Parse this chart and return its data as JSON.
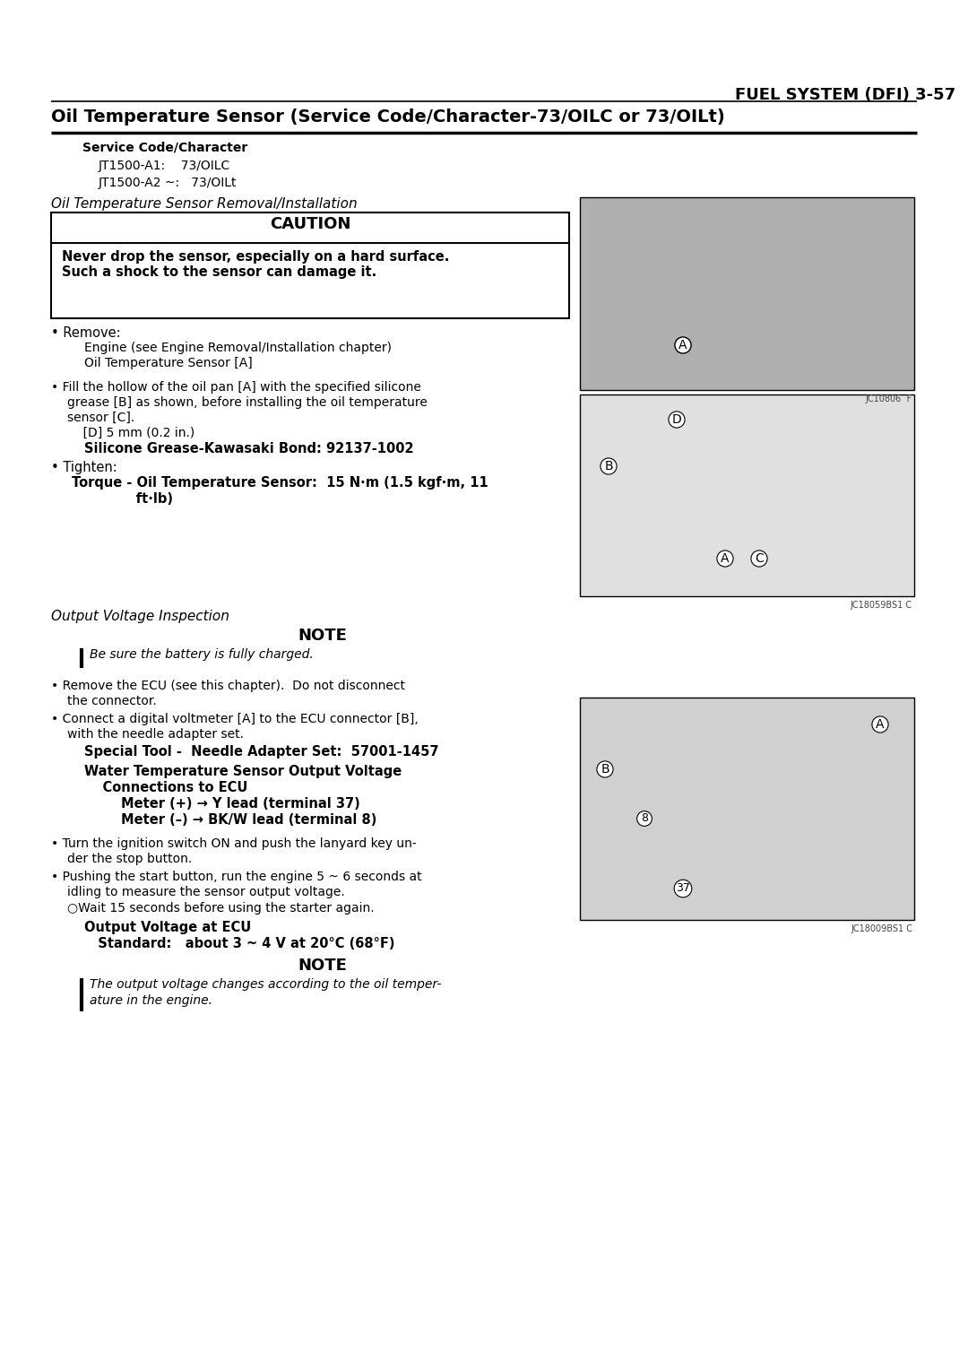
{
  "page_title": "FUEL SYSTEM (DFI) 3-57",
  "section_title": "Oil Temperature Sensor (Service Code/Character-73/OILC or 73/OILt)",
  "service_code_label": "Service Code/Character",
  "service_code_1": "JT1500-A1:    73/OILC",
  "service_code_2": "JT1500-A2 ~:   73/OILt",
  "subsection1_title": "Oil Temperature Sensor Removal/Installation",
  "caution_header": "CAUTION",
  "caution_text": "Never drop the sensor, especially on a hard surface.\nSuch a shock to the sensor can damage it.",
  "remove_label": "• Remove:",
  "remove_text1": "Engine (see Engine Removal/Installation chapter)",
  "remove_text2": "Oil Temperature Sensor [A]",
  "fill_bullet": "• Fill the hollow of the oil pan [A] with the specified silicone",
  "fill_text2": "grease [B] as shown, before installing the oil temperature",
  "fill_text3": "sensor [C].",
  "fill_sub": "    [D] 5 mm (0.2 in.)",
  "silicone_label": "Silicone Grease-Kawasaki Bond: 92137-1002",
  "tighten_bullet": "• Tighten:",
  "torque_line1": "Torque - Oil Temperature Sensor:  15 N·m (1.5 kgf·m, 11",
  "torque_line2": "              ft·lb)",
  "subsection2_title": "Output Voltage Inspection",
  "note_header": "NOTE",
  "note_text": "Be sure the battery is fully charged.",
  "remove_ecu_bullet": "• Remove the ECU (see this chapter).  Do not disconnect",
  "remove_ecu_text2": "the connector.",
  "connect_bullet": "• Connect a digital voltmeter [A] to the ECU connector [B],",
  "connect_text2": "with the needle adapter set.",
  "special_tool_label": "Special Tool -  Needle Adapter Set:  57001-1457",
  "wt_voltage_label": "Water Temperature Sensor Output Voltage",
  "connections_label": "    Connections to ECU",
  "meter_plus": "        Meter (+) → Y lead (terminal 37)",
  "meter_minus": "        Meter (–) → BK/W lead (terminal 8)",
  "turn_bullet": "• Turn the ignition switch ON and push the lanyard key un-",
  "turn_text2": "der the stop button.",
  "push_bullet": "• Pushing the start button, run the engine 5 ~ 6 seconds at",
  "push_text2": "idling to measure the sensor output voltage.",
  "wait_text": "○Wait 15 seconds before using the starter again.",
  "output_voltage_label": "Output Voltage at ECU",
  "standard_text": "   Standard:   about 3 ~ 4 V at 20°C (68°F)",
  "note2_header": "NOTE",
  "note2_text1": "The output voltage changes according to the oil temper-",
  "note2_text2": "ature in the engine.",
  "bg_color": "#ffffff",
  "text_color": "#000000"
}
